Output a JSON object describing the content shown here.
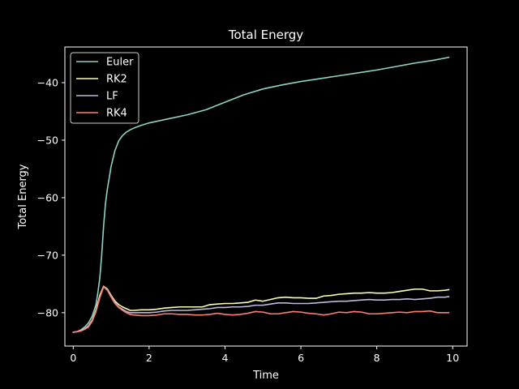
{
  "chart_data": {
    "type": "line",
    "title": "Total Energy",
    "xlabel": "Time",
    "ylabel": "Total Energy",
    "xlim": [
      -0.22,
      10.38
    ],
    "ylim": [
      -85.8,
      -33.8
    ],
    "xticks": [
      0,
      2,
      4,
      6,
      8,
      10
    ],
    "yticks": [
      -80,
      -70,
      -60,
      -50,
      -40
    ],
    "tick_labels": {
      "x": [
        "0",
        "2",
        "4",
        "6",
        "8",
        "10"
      ],
      "y": [
        "−80",
        "−70",
        "−60",
        "−50",
        "−40"
      ]
    },
    "grid": false,
    "legend": "top-left",
    "background": "#000000",
    "series": [
      {
        "name": "Euler",
        "color": "#8dd3c7",
        "points": [
          [
            0,
            -83.4
          ],
          [
            0.1,
            -83.3
          ],
          [
            0.2,
            -83.0
          ],
          [
            0.3,
            -82.5
          ],
          [
            0.4,
            -81.8
          ],
          [
            0.5,
            -80.6
          ],
          [
            0.6,
            -78.6
          ],
          [
            0.65,
            -76.5
          ],
          [
            0.7,
            -74.0
          ],
          [
            0.75,
            -70.0
          ],
          [
            0.8,
            -65.0
          ],
          [
            0.85,
            -61.0
          ],
          [
            0.9,
            -58.5
          ],
          [
            1.0,
            -54.5
          ],
          [
            1.1,
            -51.8
          ],
          [
            1.2,
            -50.1
          ],
          [
            1.3,
            -49.2
          ],
          [
            1.4,
            -48.6
          ],
          [
            1.5,
            -48.2
          ],
          [
            1.6,
            -47.9
          ],
          [
            1.8,
            -47.4
          ],
          [
            2.0,
            -47.0
          ],
          [
            2.5,
            -46.3
          ],
          [
            3.0,
            -45.6
          ],
          [
            3.5,
            -44.7
          ],
          [
            4.0,
            -43.4
          ],
          [
            4.5,
            -42.1
          ],
          [
            5.0,
            -41.1
          ],
          [
            5.5,
            -40.4
          ],
          [
            6.0,
            -39.8
          ],
          [
            6.5,
            -39.3
          ],
          [
            7.0,
            -38.8
          ],
          [
            7.5,
            -38.3
          ],
          [
            8.0,
            -37.8
          ],
          [
            8.5,
            -37.2
          ],
          [
            9.0,
            -36.6
          ],
          [
            9.5,
            -36.1
          ],
          [
            9.9,
            -35.6
          ]
        ]
      },
      {
        "name": "RK2",
        "color": "#ffffb3",
        "points": [
          [
            0,
            -83.4
          ],
          [
            0.1,
            -83.3
          ],
          [
            0.2,
            -83.1
          ],
          [
            0.3,
            -82.8
          ],
          [
            0.4,
            -82.3
          ],
          [
            0.5,
            -81.3
          ],
          [
            0.6,
            -79.5
          ],
          [
            0.7,
            -77.0
          ],
          [
            0.8,
            -75.4
          ],
          [
            0.9,
            -75.9
          ],
          [
            1.0,
            -77.0
          ],
          [
            1.1,
            -78.0
          ],
          [
            1.2,
            -78.6
          ],
          [
            1.3,
            -79.0
          ],
          [
            1.4,
            -79.3
          ],
          [
            1.5,
            -79.6
          ],
          [
            1.6,
            -79.6
          ],
          [
            1.8,
            -79.5
          ],
          [
            2.0,
            -79.5
          ],
          [
            2.2,
            -79.4
          ],
          [
            2.4,
            -79.2
          ],
          [
            2.6,
            -79.1
          ],
          [
            2.8,
            -79.0
          ],
          [
            3.0,
            -79.0
          ],
          [
            3.2,
            -79.0
          ],
          [
            3.4,
            -79.0
          ],
          [
            3.6,
            -78.6
          ],
          [
            3.8,
            -78.5
          ],
          [
            4.0,
            -78.4
          ],
          [
            4.2,
            -78.4
          ],
          [
            4.4,
            -78.3
          ],
          [
            4.6,
            -78.2
          ],
          [
            4.8,
            -77.8
          ],
          [
            5.0,
            -78.0
          ],
          [
            5.2,
            -77.7
          ],
          [
            5.4,
            -77.4
          ],
          [
            5.6,
            -77.3
          ],
          [
            5.8,
            -77.4
          ],
          [
            6.0,
            -77.4
          ],
          [
            6.2,
            -77.5
          ],
          [
            6.4,
            -77.5
          ],
          [
            6.6,
            -77.1
          ],
          [
            6.8,
            -77.0
          ],
          [
            7.0,
            -76.8
          ],
          [
            7.2,
            -76.7
          ],
          [
            7.4,
            -76.6
          ],
          [
            7.6,
            -76.6
          ],
          [
            7.8,
            -76.5
          ],
          [
            8.0,
            -76.6
          ],
          [
            8.2,
            -76.6
          ],
          [
            8.4,
            -76.5
          ],
          [
            8.6,
            -76.3
          ],
          [
            8.8,
            -76.1
          ],
          [
            9.0,
            -75.9
          ],
          [
            9.2,
            -75.9
          ],
          [
            9.4,
            -76.2
          ],
          [
            9.6,
            -76.2
          ],
          [
            9.8,
            -76.1
          ],
          [
            9.9,
            -76.0
          ]
        ]
      },
      {
        "name": "LF",
        "color": "#bebada",
        "points": [
          [
            0,
            -83.4
          ],
          [
            0.1,
            -83.3
          ],
          [
            0.2,
            -83.1
          ],
          [
            0.3,
            -82.8
          ],
          [
            0.4,
            -82.4
          ],
          [
            0.5,
            -81.4
          ],
          [
            0.6,
            -79.7
          ],
          [
            0.7,
            -77.3
          ],
          [
            0.8,
            -75.5
          ],
          [
            0.9,
            -76.0
          ],
          [
            1.0,
            -77.2
          ],
          [
            1.1,
            -78.3
          ],
          [
            1.2,
            -79.0
          ],
          [
            1.3,
            -79.4
          ],
          [
            1.4,
            -79.8
          ],
          [
            1.5,
            -80.0
          ],
          [
            1.6,
            -80.0
          ],
          [
            1.8,
            -80.0
          ],
          [
            2.0,
            -80.0
          ],
          [
            2.2,
            -79.9
          ],
          [
            2.4,
            -79.7
          ],
          [
            2.6,
            -79.6
          ],
          [
            2.8,
            -79.6
          ],
          [
            3.0,
            -79.6
          ],
          [
            3.2,
            -79.5
          ],
          [
            3.4,
            -79.4
          ],
          [
            3.6,
            -79.3
          ],
          [
            3.8,
            -79.1
          ],
          [
            4.0,
            -79.1
          ],
          [
            4.2,
            -79.0
          ],
          [
            4.4,
            -79.0
          ],
          [
            4.6,
            -78.9
          ],
          [
            4.8,
            -78.7
          ],
          [
            5.0,
            -78.7
          ],
          [
            5.2,
            -78.5
          ],
          [
            5.4,
            -78.3
          ],
          [
            5.6,
            -78.3
          ],
          [
            5.8,
            -78.4
          ],
          [
            6.0,
            -78.4
          ],
          [
            6.2,
            -78.4
          ],
          [
            6.4,
            -78.3
          ],
          [
            6.6,
            -78.2
          ],
          [
            6.8,
            -78.1
          ],
          [
            7.0,
            -78.0
          ],
          [
            7.2,
            -78.0
          ],
          [
            7.4,
            -77.9
          ],
          [
            7.6,
            -77.8
          ],
          [
            7.8,
            -77.7
          ],
          [
            8.0,
            -77.8
          ],
          [
            8.2,
            -77.8
          ],
          [
            8.4,
            -77.7
          ],
          [
            8.6,
            -77.7
          ],
          [
            8.8,
            -77.6
          ],
          [
            9.0,
            -77.7
          ],
          [
            9.2,
            -77.6
          ],
          [
            9.4,
            -77.5
          ],
          [
            9.6,
            -77.3
          ],
          [
            9.8,
            -77.3
          ],
          [
            9.9,
            -77.2
          ]
        ]
      },
      {
        "name": "RK4",
        "color": "#fb8072",
        "points": [
          [
            0,
            -83.4
          ],
          [
            0.1,
            -83.3
          ],
          [
            0.2,
            -83.2
          ],
          [
            0.3,
            -82.9
          ],
          [
            0.4,
            -82.5
          ],
          [
            0.5,
            -81.5
          ],
          [
            0.6,
            -79.8
          ],
          [
            0.7,
            -77.4
          ],
          [
            0.8,
            -75.5
          ],
          [
            0.9,
            -76.1
          ],
          [
            1.0,
            -77.3
          ],
          [
            1.1,
            -78.4
          ],
          [
            1.2,
            -79.1
          ],
          [
            1.3,
            -79.6
          ],
          [
            1.4,
            -80.0
          ],
          [
            1.5,
            -80.3
          ],
          [
            1.6,
            -80.4
          ],
          [
            1.8,
            -80.5
          ],
          [
            2.0,
            -80.5
          ],
          [
            2.2,
            -80.4
          ],
          [
            2.4,
            -80.2
          ],
          [
            2.6,
            -80.2
          ],
          [
            2.8,
            -80.3
          ],
          [
            3.0,
            -80.3
          ],
          [
            3.2,
            -80.4
          ],
          [
            3.4,
            -80.4
          ],
          [
            3.6,
            -80.3
          ],
          [
            3.8,
            -80.1
          ],
          [
            4.0,
            -80.3
          ],
          [
            4.2,
            -80.4
          ],
          [
            4.4,
            -80.3
          ],
          [
            4.6,
            -80.1
          ],
          [
            4.8,
            -79.8
          ],
          [
            5.0,
            -79.9
          ],
          [
            5.2,
            -80.2
          ],
          [
            5.4,
            -80.2
          ],
          [
            5.6,
            -80.0
          ],
          [
            5.8,
            -79.8
          ],
          [
            6.0,
            -79.9
          ],
          [
            6.2,
            -80.1
          ],
          [
            6.4,
            -80.2
          ],
          [
            6.6,
            -80.4
          ],
          [
            6.8,
            -80.2
          ],
          [
            7.0,
            -79.9
          ],
          [
            7.2,
            -80.0
          ],
          [
            7.4,
            -79.8
          ],
          [
            7.6,
            -79.9
          ],
          [
            7.8,
            -80.2
          ],
          [
            8.0,
            -80.2
          ],
          [
            8.2,
            -80.1
          ],
          [
            8.4,
            -80.0
          ],
          [
            8.6,
            -79.9
          ],
          [
            8.8,
            -80.0
          ],
          [
            9.0,
            -79.8
          ],
          [
            9.2,
            -79.8
          ],
          [
            9.4,
            -79.7
          ],
          [
            9.6,
            -80.0
          ],
          [
            9.8,
            -80.0
          ],
          [
            9.9,
            -80.0
          ]
        ]
      }
    ]
  }
}
